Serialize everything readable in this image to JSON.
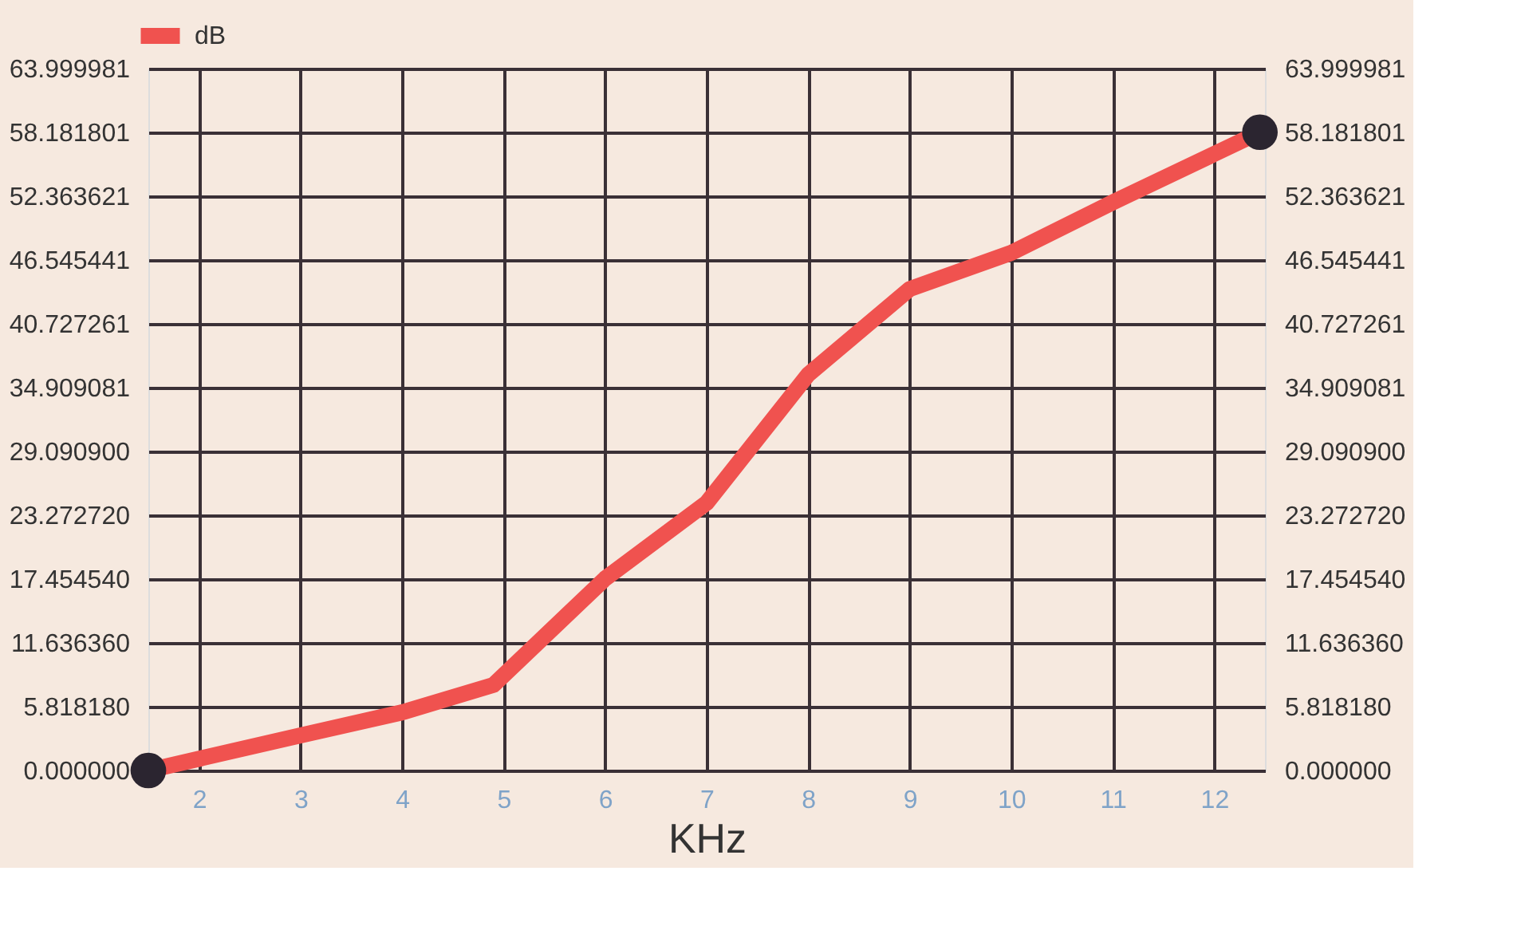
{
  "chart_data": {
    "type": "line",
    "xlabel": "KHz",
    "x": [
      1.5,
      3,
      4,
      4.9,
      6,
      7,
      8,
      9,
      10,
      11,
      12.45
    ],
    "series": [
      {
        "name": "dB",
        "color": "#f0524f",
        "values": [
          0,
          3.2,
          5.3,
          7.8,
          17.5,
          24.4,
          36.1,
          43.9,
          47.2,
          51.8,
          58.2
        ]
      },
      {
        "type": "scatter",
        "color": "#2b2530",
        "marker": "circle",
        "x": [
          1.5,
          12.45
        ],
        "values": [
          0,
          58.2
        ]
      }
    ],
    "xlim": [
      1.5,
      12.5
    ],
    "xticks": [
      2,
      3,
      4,
      5,
      6,
      7,
      8,
      9,
      10,
      11,
      12
    ],
    "ylim": [
      0,
      63.999981
    ],
    "yticks": [
      {
        "value": 0,
        "label": "0.000000"
      },
      {
        "value": 5.81818,
        "label": "5.818180"
      },
      {
        "value": 11.63636,
        "label": "11.636360"
      },
      {
        "value": 17.45454,
        "label": "17.454540"
      },
      {
        "value": 23.27272,
        "label": "23.272720"
      },
      {
        "value": 29.0909,
        "label": "29.090900"
      },
      34.909081,
      40.727261,
      46.545441,
      52.363621,
      58.181801,
      63.999981
    ],
    "y2lim": [
      0,
      63.999981
    ],
    "y2ticks": [
      {
        "value": 0,
        "label": "0.000000"
      },
      {
        "value": 5.81818,
        "label": "5.818180"
      },
      {
        "value": 11.63636,
        "label": "11.636360"
      },
      {
        "value": 17.45454,
        "label": "17.454540"
      },
      {
        "value": 23.27272,
        "label": "23.272720"
      },
      {
        "value": 29.0909,
        "label": "29.090900"
      },
      34.909081,
      40.727261,
      46.545441,
      52.363621,
      58.181801,
      63.999981
    ],
    "grid": true,
    "legend": "top left",
    "line_style": "solid"
  }
}
